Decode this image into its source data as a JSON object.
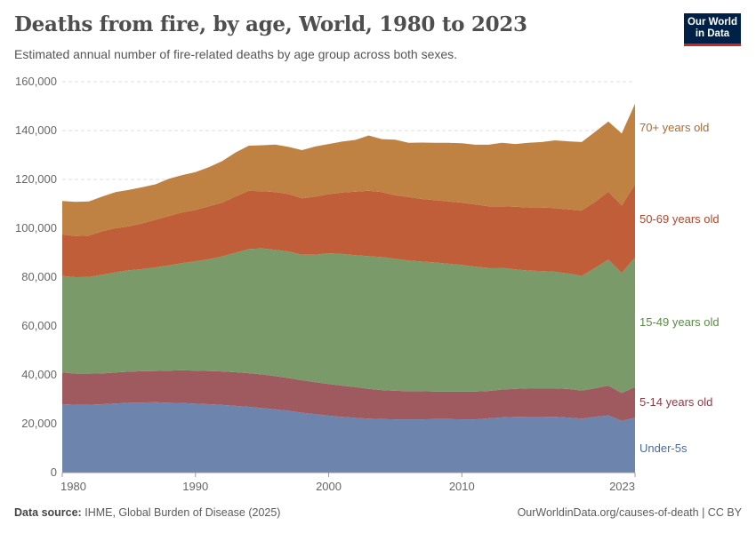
{
  "header": {
    "title": "Deaths from fire, by age, World, 1980 to 2023",
    "subtitle": "Estimated annual number of fire-related deaths by age group across both sexes.",
    "logo_text": "Our World in Data"
  },
  "footer": {
    "source_label": "Data source:",
    "source": "IHME, Global Burden of Disease (2025)",
    "link": "OurWorldinData.org/causes-of-death | CC BY"
  },
  "chart_data": {
    "type": "area",
    "stacked": true,
    "title": "Deaths from fire, by age, World, 1980 to 2023",
    "xlabel": "",
    "ylabel": "",
    "xlim": [
      1980,
      2023
    ],
    "ylim": [
      0,
      160000
    ],
    "grid": "horizontal dashed",
    "legend": "right, inline labels",
    "x_ticks": [
      "1980",
      "1990",
      "2000",
      "2010",
      "2023"
    ],
    "y_ticks": [
      "0",
      "20,000",
      "40,000",
      "60,000",
      "80,000",
      "100,000",
      "120,000",
      "140,000",
      "160,000"
    ],
    "start_year": 1980,
    "series": [
      {
        "name": "Under-5s",
        "color": "#6d84ad",
        "label_color": "#4a6a9e",
        "values": [
          28000,
          27800,
          27800,
          28000,
          28300,
          28600,
          28700,
          28800,
          28600,
          28500,
          28200,
          28000,
          27700,
          27300,
          26900,
          26400,
          25900,
          25300,
          24500,
          23900,
          23300,
          22800,
          22400,
          22100,
          21900,
          21800,
          21800,
          21800,
          21900,
          21900,
          21800,
          21800,
          22200,
          22600,
          22800,
          22900,
          22900,
          22800,
          22500,
          22100,
          22800,
          23400,
          21200,
          22500
        ]
      },
      {
        "name": "5-14 years old",
        "color": "#9f5a5f",
        "label_color": "#8c3a45",
        "values": [
          13000,
          12700,
          12700,
          12600,
          12700,
          12700,
          12800,
          12800,
          13100,
          13400,
          13500,
          13600,
          13700,
          13800,
          13800,
          13800,
          13600,
          13400,
          13300,
          13100,
          13000,
          12800,
          12600,
          12200,
          11900,
          11700,
          11500,
          11500,
          11300,
          11300,
          11400,
          11400,
          11200,
          11400,
          11500,
          11600,
          11600,
          11700,
          11700,
          11500,
          11700,
          12200,
          11400,
          12500
        ]
      },
      {
        "name": "15-49 years old",
        "color": "#7a9a6a",
        "label_color": "#5a8a48",
        "values": [
          39500,
          39500,
          39600,
          40400,
          41000,
          41500,
          41800,
          42400,
          43100,
          43900,
          44800,
          45700,
          47100,
          48900,
          50800,
          51600,
          51700,
          51800,
          51400,
          52200,
          53500,
          53900,
          54000,
          54300,
          54400,
          54000,
          53500,
          53100,
          52800,
          52300,
          51800,
          51100,
          50400,
          49800,
          48900,
          48200,
          48000,
          47700,
          47300,
          46900,
          49300,
          51600,
          49200,
          53000
        ]
      },
      {
        "name": "50-69 years old",
        "color": "#c05e39",
        "label_color": "#b4452a",
        "values": [
          17000,
          16800,
          16900,
          17800,
          18000,
          18000,
          18700,
          19500,
          20200,
          20700,
          21000,
          21700,
          22000,
          23000,
          23800,
          23400,
          23600,
          23500,
          23100,
          23800,
          24200,
          25100,
          26000,
          26800,
          26600,
          26000,
          26000,
          25600,
          25500,
          25500,
          25500,
          25500,
          25200,
          25200,
          25600,
          25800,
          26000,
          26100,
          26200,
          26800,
          27000,
          27800,
          27500,
          30000
        ]
      },
      {
        "name": "70+ years old",
        "color": "#c08242",
        "label_color": "#b06a2a",
        "values": [
          13700,
          14000,
          14000,
          14200,
          14800,
          14900,
          14800,
          14500,
          15300,
          15300,
          15500,
          16000,
          17000,
          18000,
          18500,
          18800,
          19500,
          19300,
          19700,
          20500,
          20500,
          20900,
          21200,
          22600,
          21700,
          22800,
          22200,
          23100,
          23500,
          24000,
          24300,
          24400,
          25200,
          26000,
          25700,
          26500,
          26800,
          27700,
          27900,
          28000,
          28700,
          28700,
          29500,
          33000
        ]
      }
    ]
  }
}
